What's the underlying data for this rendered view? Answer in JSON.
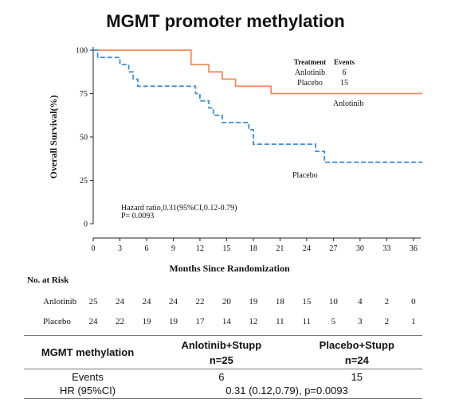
{
  "title": "MGMT promoter methylation",
  "chart_data": {
    "type": "line",
    "step": true,
    "xlabel": "Months Since Randomization",
    "ylabel": "Overall Survival(%)",
    "xlim": [
      0,
      37
    ],
    "ylim": [
      0,
      100
    ],
    "xticks": [
      "0",
      "3",
      "6",
      "9",
      "12",
      "15",
      "18",
      "21",
      "24",
      "27",
      "30",
      "33",
      "36"
    ],
    "yticks": [
      "0",
      "25",
      "50",
      "75",
      "100"
    ],
    "series": [
      {
        "name": "Anlotinib",
        "color": "#f28c5a",
        "style": "solid",
        "points": [
          [
            0,
            100
          ],
          [
            11,
            100
          ],
          [
            11,
            91.7
          ],
          [
            13,
            91.7
          ],
          [
            13,
            87.5
          ],
          [
            14.5,
            87.5
          ],
          [
            14.5,
            83.3
          ],
          [
            16,
            83.3
          ],
          [
            16,
            79.2
          ],
          [
            20,
            79.2
          ],
          [
            20,
            75
          ],
          [
            37,
            75
          ]
        ]
      },
      {
        "name": "Placebo",
        "color": "#3b8fd8",
        "style": "dashed",
        "points": [
          [
            0,
            100
          ],
          [
            0.5,
            100
          ],
          [
            0.5,
            95.8
          ],
          [
            3,
            95.8
          ],
          [
            3,
            91.7
          ],
          [
            4,
            91.7
          ],
          [
            4,
            87.5
          ],
          [
            4.5,
            87.5
          ],
          [
            4.5,
            83.3
          ],
          [
            5,
            83.3
          ],
          [
            5,
            79.2
          ],
          [
            11.5,
            79.2
          ],
          [
            11.5,
            75
          ],
          [
            12,
            75
          ],
          [
            12,
            70.8
          ],
          [
            13,
            70.8
          ],
          [
            13,
            66.7
          ],
          [
            13.5,
            66.7
          ],
          [
            13.5,
            62.5
          ],
          [
            14.5,
            62.5
          ],
          [
            14.5,
            58.3
          ],
          [
            17.5,
            58.3
          ],
          [
            17.5,
            54.2
          ],
          [
            18,
            54.2
          ],
          [
            18,
            45.8
          ],
          [
            25,
            45.8
          ],
          [
            25,
            41.7
          ],
          [
            26,
            41.7
          ],
          [
            26,
            35.4
          ],
          [
            37,
            35.4
          ]
        ]
      }
    ],
    "legend_title": [
      "Treatment",
      "Events"
    ],
    "legend_rows": [
      [
        "Anlotinib",
        "6"
      ],
      [
        "Placebo",
        "15"
      ]
    ],
    "curve_labels": [
      "Anlotinib",
      "Placebo"
    ],
    "annotation": [
      "Hazard ratio,0.31(95%CI,0.12-0.79)",
      "P= 0.0093"
    ]
  },
  "risk_table": {
    "header": "No. at Risk",
    "rows": [
      {
        "label": "Anlotinib",
        "values": [
          "25",
          "24",
          "24",
          "24",
          "22",
          "20",
          "19",
          "18",
          "15",
          "10",
          "4",
          "2",
          "0"
        ]
      },
      {
        "label": "Placebo",
        "values": [
          "24",
          "22",
          "19",
          "19",
          "17",
          "14",
          "12",
          "11",
          "11",
          "5",
          "3",
          "2",
          "1"
        ]
      }
    ]
  },
  "summary_table": {
    "row_header": "MGMT methylation",
    "col1": "Anlotinib+Stupp",
    "col2": "Placebo+Stupp",
    "n1": "n=25",
    "n2": "n=24",
    "events_label": "Events",
    "events1": "6",
    "events2": "15",
    "hr_label": "HR (95%CI)",
    "hr_value": "0.31 (0.12,0.79), p=0.0093"
  }
}
